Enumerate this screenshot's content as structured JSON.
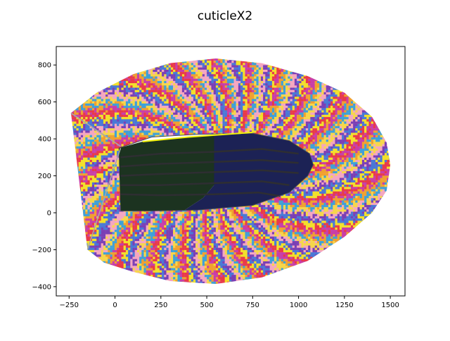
{
  "chart_data": {
    "type": "scatter",
    "title": "cuticleX2",
    "xlabel": "",
    "ylabel": "",
    "xlim": [
      -320,
      1580
    ],
    "ylim": [
      -450,
      900
    ],
    "grid": false,
    "x_ticks": [
      -250,
      0,
      250,
      500,
      750,
      1000,
      1250,
      1500
    ],
    "y_ticks": [
      -400,
      -200,
      0,
      200,
      400,
      600,
      800
    ],
    "x_tick_labels": [
      "−250",
      "0",
      "250",
      "500",
      "750",
      "1000",
      "1250",
      "1500"
    ],
    "y_tick_labels": [
      "−400",
      "−200",
      "0",
      "200",
      "400",
      "600",
      "800"
    ],
    "cell_colors": [
      "#f4a6c0",
      "#7b3fb5",
      "#4a78d6",
      "#f2e02a",
      "#e83a4a",
      "#c83ea8",
      "#f0a030",
      "#3fa0d8",
      "#f6d64a"
    ],
    "outer_region": {
      "upper_boundary": [
        [
          -240,
          540
        ],
        [
          -100,
          650
        ],
        [
          100,
          750
        ],
        [
          300,
          810
        ],
        [
          550,
          835
        ],
        [
          800,
          810
        ],
        [
          1050,
          740
        ],
        [
          1250,
          650
        ],
        [
          1400,
          520
        ],
        [
          1480,
          380
        ],
        [
          1500,
          260
        ]
      ],
      "lower_boundary": [
        [
          1500,
          260
        ],
        [
          1480,
          120
        ],
        [
          1400,
          0
        ],
        [
          1250,
          -130
        ],
        [
          1050,
          -260
        ],
        [
          800,
          -350
        ],
        [
          550,
          -385
        ],
        [
          300,
          -370
        ],
        [
          100,
          -320
        ],
        [
          -60,
          -270
        ],
        [
          -150,
          -200
        ]
      ],
      "inner_boundary": [
        [
          20,
          350
        ],
        [
          200,
          410
        ],
        [
          450,
          425
        ],
        [
          750,
          430
        ],
        [
          950,
          390
        ],
        [
          1060,
          320
        ],
        [
          1080,
          260
        ],
        [
          1050,
          200
        ],
        [
          950,
          110
        ],
        [
          750,
          40
        ],
        [
          450,
          15
        ],
        [
          200,
          10
        ],
        [
          30,
          10
        ]
      ]
    },
    "guide_lines": [
      {
        "color": "#a8a8a8",
        "points": [
          [
            -150,
            -200
          ],
          [
            30,
            350
          ]
        ]
      },
      {
        "color": "#a8a8a8",
        "points": [
          [
            -240,
            540
          ],
          [
            30,
            360
          ]
        ]
      }
    ],
    "yellow_edge": {
      "color": "#f2f20a",
      "points": [
        [
          150,
          385
        ],
        [
          400,
          410
        ],
        [
          750,
          435
        ]
      ]
    },
    "dark_green_region": {
      "color": "#1c3320",
      "points": [
        [
          20,
          350
        ],
        [
          150,
          385
        ],
        [
          400,
          410
        ],
        [
          540,
          420
        ],
        [
          540,
          150
        ],
        [
          480,
          80
        ],
        [
          380,
          15
        ],
        [
          200,
          10
        ],
        [
          30,
          10
        ]
      ]
    },
    "navy_region": {
      "color": "#1c2255",
      "points": [
        [
          540,
          420
        ],
        [
          750,
          430
        ],
        [
          950,
          390
        ],
        [
          1060,
          320
        ],
        [
          1080,
          260
        ],
        [
          1050,
          200
        ],
        [
          950,
          110
        ],
        [
          750,
          40
        ],
        [
          450,
          15
        ],
        [
          380,
          15
        ],
        [
          480,
          80
        ],
        [
          540,
          150
        ]
      ]
    },
    "inner_lines": [
      [
        [
          30,
          300
        ],
        [
          250,
          320
        ],
        [
          540,
          330
        ],
        [
          800,
          345
        ],
        [
          1000,
          320
        ]
      ],
      [
        [
          30,
          250
        ],
        [
          250,
          265
        ],
        [
          540,
          275
        ],
        [
          800,
          285
        ],
        [
          1000,
          270
        ]
      ],
      [
        [
          30,
          200
        ],
        [
          250,
          210
        ],
        [
          540,
          220
        ],
        [
          800,
          230
        ],
        [
          1000,
          215
        ]
      ],
      [
        [
          30,
          150
        ],
        [
          250,
          150
        ],
        [
          540,
          160
        ],
        [
          800,
          170
        ],
        [
          950,
          150
        ]
      ],
      [
        [
          30,
          100
        ],
        [
          250,
          95
        ],
        [
          540,
          100
        ],
        [
          780,
          110
        ],
        [
          900,
          90
        ]
      ]
    ]
  }
}
